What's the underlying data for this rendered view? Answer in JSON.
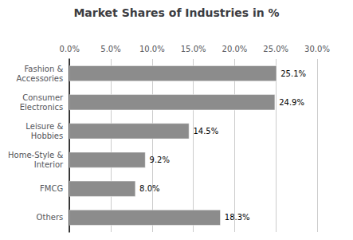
{
  "chart_data": {
    "type": "bar",
    "orientation": "horizontal",
    "title": "Market Shares of Industries in %",
    "categories": [
      "Fashion &\nAccessories",
      "Consumer\nElectronics",
      "Leisure &\nHobbies",
      "Home-Style &\nInterior",
      "FMCG",
      "Others"
    ],
    "values": [
      25.1,
      24.9,
      14.5,
      9.2,
      8.0,
      18.3
    ],
    "value_labels": [
      "25.1%",
      "24.9%",
      "14.5%",
      "9.2%",
      "8.0%",
      "18.3%"
    ],
    "data_labels": true,
    "color": "#8c8c8c",
    "xlim": [
      0,
      30
    ],
    "xticks": [
      {
        "value": 0,
        "label": "0.0%"
      },
      {
        "value": 5,
        "label": "5.0%"
      },
      {
        "value": 10,
        "label": "10.0%"
      },
      {
        "value": 15,
        "label": "15.0%"
      },
      {
        "value": 20,
        "label": "20.0%"
      },
      {
        "value": 25,
        "label": "25.0%"
      },
      {
        "value": 30,
        "label": "30.0%"
      }
    ],
    "grid": true
  }
}
